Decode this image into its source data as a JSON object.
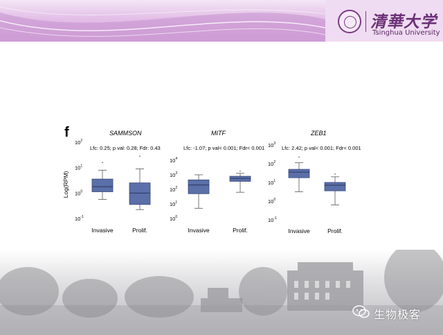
{
  "logo": {
    "chinese_name": "清華大学",
    "english_name": "Tsinghua University"
  },
  "figure": {
    "panel_letter": "f",
    "y_axis_label": "Log(RPM)",
    "colors": {
      "box_fill": "#5b6fa8",
      "box_stroke": "#3a4a7e"
    },
    "plots": [
      {
        "gene": "SAMMSON",
        "stats": "Lfc: 0.25; p val: 0.28; Fdr: 0.43",
        "y_ticks": [
          {
            "base": "10",
            "exp": "2",
            "log": 2
          },
          {
            "base": "10",
            "exp": "1",
            "log": 1
          },
          {
            "base": "10",
            "exp": "0",
            "log": 0
          },
          {
            "base": "10",
            "exp": "-1",
            "log": -1
          }
        ]
      },
      {
        "gene": "MITF",
        "stats": "Lfc: -1.07; p val< 0.001; Fdr< 0.001",
        "y_ticks": [
          {
            "base": "10",
            "exp": "4",
            "log": 4
          },
          {
            "base": "10",
            "exp": "3",
            "log": 3
          },
          {
            "base": "10",
            "exp": "2",
            "log": 2
          },
          {
            "base": "10",
            "exp": "1",
            "log": 1
          },
          {
            "base": "10",
            "exp": "0",
            "log": 0
          }
        ]
      },
      {
        "gene": "ZEB1",
        "stats": "Lfc: 2.42; p val< 0.001; Fdr< 0.001",
        "y_ticks": [
          {
            "base": "10",
            "exp": "3",
            "log": 3
          },
          {
            "base": "10",
            "exp": "2",
            "log": 2
          },
          {
            "base": "10",
            "exp": "1",
            "log": 1
          },
          {
            "base": "10",
            "exp": "0",
            "log": 0
          },
          {
            "base": "10",
            "exp": "-1",
            "log": -1
          }
        ]
      }
    ]
  },
  "chart_data": [
    {
      "type": "boxplot",
      "title": "SAMMSON",
      "ylabel": "Log(RPM)",
      "yscale": "log",
      "ylim_log10": [
        -1,
        2
      ],
      "categories": [
        "Invasive",
        "Prolif."
      ],
      "boxes": [
        {
          "category": "Invasive",
          "whisker_low_log10": -0.25,
          "q1_log10": 0.05,
          "median_log10": 0.25,
          "q3_log10": 0.55,
          "whisker_high_log10": 0.9,
          "outliers_log10": [
            1.2
          ]
        },
        {
          "category": "Prolif.",
          "whisker_low_log10": -0.65,
          "q1_log10": -0.45,
          "median_log10": 0.0,
          "q3_log10": 0.4,
          "whisker_high_log10": 0.95,
          "outliers_log10": [
            1.45
          ]
        }
      ]
    },
    {
      "type": "boxplot",
      "title": "MITF",
      "ylabel": "Log(RPM)",
      "yscale": "log",
      "ylim_log10": [
        0,
        4
      ],
      "categories": [
        "Invasive",
        "Prolif."
      ],
      "boxes": [
        {
          "category": "Invasive",
          "whisker_low_log10": 0.7,
          "q1_log10": 1.7,
          "median_log10": 2.3,
          "q3_log10": 2.65,
          "whisker_high_log10": 3.0,
          "outliers_log10": []
        },
        {
          "category": "Prolif.",
          "whisker_low_log10": 1.8,
          "q1_log10": 2.55,
          "median_log10": 2.75,
          "q3_log10": 2.9,
          "whisker_high_log10": 3.1,
          "outliers_log10": [
            3.25
          ]
        }
      ]
    },
    {
      "type": "boxplot",
      "title": "ZEB1",
      "ylabel": "Log(RPM)",
      "yscale": "log",
      "ylim_log10": [
        -1,
        3
      ],
      "categories": [
        "Invasive",
        "Prolif."
      ],
      "boxes": [
        {
          "category": "Invasive",
          "whisker_low_log10": 0.5,
          "q1_log10": 1.25,
          "median_log10": 1.55,
          "q3_log10": 1.7,
          "whisker_high_log10": 2.05,
          "outliers_log10": [
            2.35
          ]
        },
        {
          "category": "Prolif.",
          "whisker_low_log10": -0.2,
          "q1_log10": 0.55,
          "median_log10": 0.85,
          "q3_log10": 1.0,
          "whisker_high_log10": 1.3,
          "outliers_log10": [
            1.45
          ]
        }
      ]
    }
  ],
  "watermark": {
    "text": "生物极客",
    "icon": "wechat-icon"
  }
}
